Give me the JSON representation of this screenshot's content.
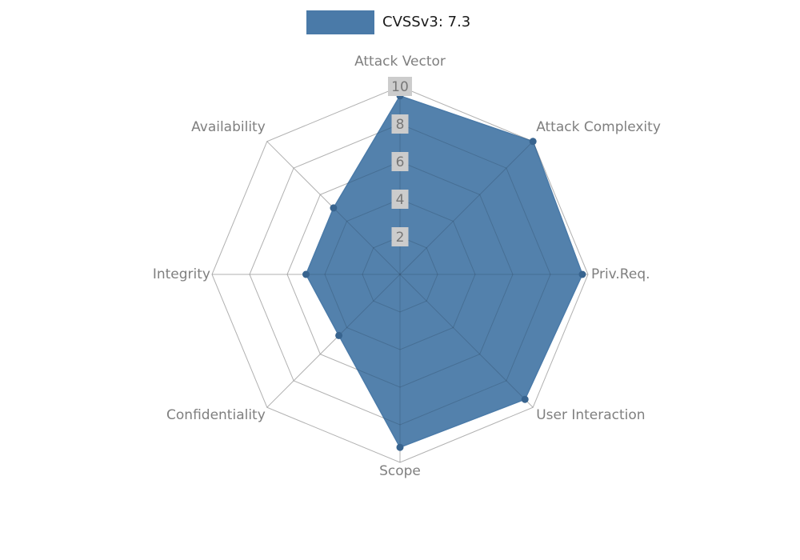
{
  "chart_data": {
    "type": "radar",
    "title": "CVSSv3: 7.3",
    "legend_position": "top",
    "categories": [
      "Attack Vector",
      "Attack Complexity",
      "Priv.Req.",
      "User Interaction",
      "Scope",
      "Confidentiality",
      "Integrity",
      "Availability"
    ],
    "values": [
      9.5,
      10,
      9.7,
      9.4,
      9.2,
      4.6,
      5.0,
      5.0
    ],
    "ticks": [
      2,
      4,
      6,
      8,
      10
    ],
    "rmax": 10,
    "grid": true,
    "colors": {
      "fill": "#4a7aa8",
      "marker": "#38648f",
      "grid": "#cccccc",
      "grid_overlay": "rgba(0,0,0,0.13)",
      "axis_label": "#7f7f7f",
      "tick_label": "#777777",
      "tick_bg": "#cccccc",
      "legend_text": "#1a1a1a"
    }
  }
}
